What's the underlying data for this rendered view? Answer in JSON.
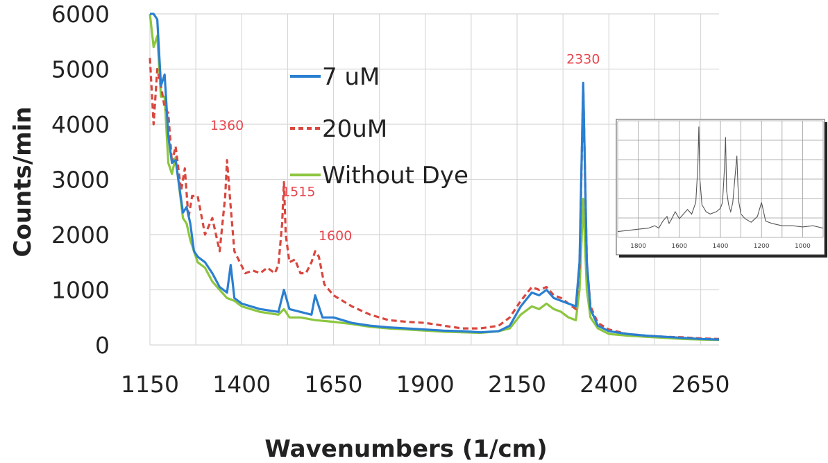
{
  "chart_data": {
    "type": "line",
    "xlabel": "Wavenumbers (1/cm)",
    "ylabel": "Counts/min",
    "xlim": [
      1150,
      2700
    ],
    "ylim": [
      0,
      6000
    ],
    "x_ticks": [
      "1150",
      "1400",
      "1650",
      "1900",
      "2150",
      "2400",
      "2650"
    ],
    "y_ticks": [
      "0",
      "1000",
      "2000",
      "3000",
      "4000",
      "5000",
      "6000"
    ],
    "grid": true,
    "legend_position": "top-center",
    "series": [
      {
        "name": "7 uM",
        "color": "#2a7fd0",
        "dash": "solid",
        "x": [
          1150,
          1160,
          1170,
          1180,
          1190,
          1200,
          1210,
          1220,
          1240,
          1250,
          1260,
          1270,
          1280,
          1300,
          1320,
          1340,
          1360,
          1370,
          1380,
          1400,
          1450,
          1500,
          1515,
          1530,
          1560,
          1590,
          1600,
          1620,
          1650,
          1700,
          1750,
          1800,
          1850,
          1900,
          1950,
          2000,
          2050,
          2100,
          2130,
          2160,
          2190,
          2210,
          2230,
          2250,
          2270,
          2290,
          2310,
          2320,
          2330,
          2340,
          2350,
          2370,
          2400,
          2450,
          2500,
          2550,
          2600,
          2650,
          2700
        ],
        "y": [
          6000,
          6000,
          5900,
          4700,
          4900,
          3800,
          3300,
          3350,
          2400,
          2500,
          2200,
          1700,
          1600,
          1500,
          1300,
          1050,
          950,
          1450,
          850,
          750,
          650,
          600,
          1000,
          650,
          600,
          550,
          900,
          500,
          500,
          400,
          350,
          320,
          300,
          280,
          260,
          250,
          230,
          250,
          350,
          700,
          950,
          900,
          1000,
          850,
          800,
          750,
          700,
          1500,
          4750,
          1500,
          650,
          350,
          250,
          200,
          170,
          150,
          130,
          110,
          100
        ]
      },
      {
        "name": "20uM",
        "color": "#d9473f",
        "dash": "dashed",
        "x": [
          1150,
          1160,
          1170,
          1180,
          1190,
          1200,
          1210,
          1220,
          1235,
          1245,
          1255,
          1265,
          1280,
          1300,
          1320,
          1340,
          1355,
          1360,
          1370,
          1380,
          1395,
          1410,
          1430,
          1450,
          1470,
          1490,
          1500,
          1510,
          1515,
          1520,
          1530,
          1545,
          1560,
          1575,
          1590,
          1600,
          1610,
          1625,
          1650,
          1700,
          1750,
          1800,
          1850,
          1900,
          1950,
          2000,
          2050,
          2100,
          2130,
          2160,
          2190,
          2210,
          2230,
          2250,
          2270,
          2290,
          2310,
          2320,
          2330,
          2340,
          2350,
          2370,
          2400,
          2450,
          2500,
          2550,
          2600,
          2650,
          2700
        ],
        "y": [
          5200,
          4000,
          5000,
          4700,
          4300,
          4200,
          3300,
          3600,
          2800,
          3200,
          2300,
          2700,
          2700,
          2000,
          2300,
          1700,
          2700,
          3350,
          2500,
          1700,
          1500,
          1300,
          1350,
          1300,
          1400,
          1300,
          1450,
          2200,
          2950,
          2000,
          1500,
          1550,
          1300,
          1300,
          1500,
          1700,
          1600,
          1100,
          900,
          700,
          550,
          450,
          420,
          400,
          350,
          300,
          300,
          350,
          500,
          800,
          1050,
          1000,
          1050,
          900,
          850,
          750,
          650,
          1400,
          4700,
          1500,
          700,
          400,
          280,
          200,
          170,
          150,
          140,
          120,
          110
        ]
      },
      {
        "name": "Without Dye",
        "color": "#8cc63f",
        "dash": "solid",
        "x": [
          1150,
          1160,
          1170,
          1180,
          1190,
          1200,
          1210,
          1220,
          1240,
          1250,
          1260,
          1280,
          1300,
          1320,
          1340,
          1360,
          1380,
          1400,
          1450,
          1500,
          1515,
          1530,
          1560,
          1600,
          1650,
          1700,
          1750,
          1800,
          1850,
          1900,
          1950,
          2000,
          2050,
          2100,
          2130,
          2160,
          2190,
          2210,
          2230,
          2250,
          2270,
          2290,
          2310,
          2320,
          2330,
          2340,
          2350,
          2370,
          2400,
          2450,
          2500,
          2550,
          2600,
          2650,
          2700
        ],
        "y": [
          6000,
          5400,
          5600,
          4500,
          4500,
          3300,
          3100,
          3400,
          2300,
          2200,
          1900,
          1500,
          1400,
          1150,
          1000,
          850,
          800,
          700,
          600,
          550,
          650,
          500,
          500,
          450,
          420,
          380,
          330,
          300,
          280,
          260,
          240,
          230,
          220,
          250,
          300,
          550,
          700,
          650,
          750,
          650,
          600,
          500,
          450,
          1000,
          2650,
          1000,
          500,
          300,
          200,
          170,
          150,
          130,
          110,
          100,
          90
        ]
      }
    ],
    "annotations": [
      {
        "text": "1360",
        "x": 1360,
        "y": 3900,
        "color": "#e8474f"
      },
      {
        "text": "1515",
        "x": 1555,
        "y": 2700,
        "color": "#e8474f"
      },
      {
        "text": "1600",
        "x": 1655,
        "y": 1900,
        "color": "#e8474f"
      },
      {
        "text": "2330",
        "x": 2330,
        "y": 5100,
        "color": "#e8474f"
      }
    ],
    "inset": {
      "x_ticks": [
        "1800",
        "1600",
        "1400",
        "1200",
        "1000"
      ],
      "xlim": [
        1900,
        900
      ],
      "ylim": [
        0,
        1
      ],
      "color": "#555555",
      "x": [
        1900,
        1850,
        1800,
        1750,
        1720,
        1700,
        1680,
        1660,
        1650,
        1640,
        1620,
        1600,
        1580,
        1560,
        1540,
        1520,
        1510,
        1505,
        1500,
        1490,
        1470,
        1450,
        1420,
        1400,
        1390,
        1380,
        1375,
        1370,
        1360,
        1350,
        1340,
        1330,
        1320,
        1315,
        1310,
        1300,
        1280,
        1250,
        1220,
        1200,
        1190,
        1180,
        1150,
        1100,
        1050,
        1000,
        950,
        900
      ],
      "y": [
        0.05,
        0.06,
        0.07,
        0.08,
        0.1,
        0.08,
        0.14,
        0.18,
        0.12,
        0.15,
        0.22,
        0.16,
        0.2,
        0.24,
        0.2,
        0.3,
        0.6,
        0.95,
        0.5,
        0.28,
        0.22,
        0.2,
        0.22,
        0.25,
        0.3,
        0.6,
        0.86,
        0.4,
        0.28,
        0.22,
        0.3,
        0.5,
        0.7,
        0.45,
        0.3,
        0.2,
        0.16,
        0.13,
        0.18,
        0.3,
        0.22,
        0.14,
        0.12,
        0.1,
        0.1,
        0.09,
        0.1,
        0.08
      ]
    }
  }
}
